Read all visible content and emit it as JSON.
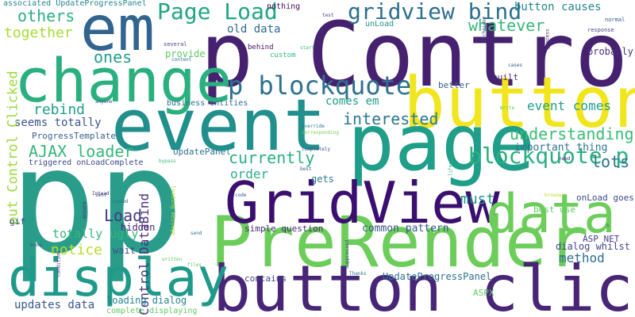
{
  "words": [
    {
      "text": "p",
      "color": "#2a9d8a"
    },
    {
      "text": "p",
      "color": "#2a9d8a"
    },
    {
      "text": "p Control",
      "color": "#46216f"
    },
    {
      "text": "button",
      "color": "#f1e51d"
    },
    {
      "text": "page",
      "color": "#1f9e89"
    },
    {
      "text": "event",
      "color": "#21908d"
    },
    {
      "text": "change",
      "color": "#2ab07f"
    },
    {
      "text": "em",
      "color": "#31648e"
    },
    {
      "text": "PreRender",
      "color": "#6ccd5a"
    },
    {
      "text": "button click",
      "color": "#482576"
    },
    {
      "text": "display",
      "color": "#1f9a8a"
    },
    {
      "text": "GridView",
      "color": "#3b0f70"
    },
    {
      "text": "data",
      "color": "#6ccd5a"
    },
    {
      "text": "p blockquote",
      "color": "#2c718e"
    },
    {
      "text": "Page Load",
      "color": "#21a685"
    },
    {
      "text": "gridview bind",
      "color": "#2d6f8e"
    },
    {
      "text": "blockquote p",
      "color": "#2ab07f"
    },
    {
      "text": "currently",
      "color": "#2ab07f"
    },
    {
      "text": "understanding",
      "color": "#3bbb75"
    },
    {
      "text": "AJAX loader",
      "color": "#35b779"
    },
    {
      "text": "others",
      "color": "#2ab07f"
    },
    {
      "text": "together",
      "color": "#a8db34"
    },
    {
      "text": "ones",
      "color": "#1f9e89"
    },
    {
      "text": "whatever",
      "color": "#35b779"
    },
    {
      "text": "button causes",
      "color": "#25848e"
    },
    {
      "text": "old data",
      "color": "#31688e"
    },
    {
      "text": "interested",
      "color": "#2a788e"
    },
    {
      "text": "rebind",
      "color": "#1f9e89"
    },
    {
      "text": "seems totally",
      "color": "#3b528b"
    },
    {
      "text": "event comes",
      "color": "#1f9e89"
    },
    {
      "text": "important thing",
      "color": "#2c728e"
    },
    {
      "text": "lots",
      "color": "#2c728e"
    },
    {
      "text": "order",
      "color": "#2ab07f"
    },
    {
      "text": "must",
      "color": "#21918c"
    },
    {
      "text": "Load",
      "color": "#443a83"
    },
    {
      "text": "Control DataBind",
      "color": "#46327e"
    },
    {
      "text": "put Control Clicked",
      "color": "#9bd93c"
    },
    {
      "text": "totally ugly",
      "color": "#35b779"
    },
    {
      "text": "notice",
      "color": "#b5de2b"
    },
    {
      "text": "method",
      "color": "#2d708e"
    },
    {
      "text": "common pattern",
      "color": "#39558c"
    },
    {
      "text": "updates data",
      "color": "#39568c"
    },
    {
      "text": "loading dialog",
      "color": "#26828e"
    },
    {
      "text": "UpdateProgressPanel",
      "color": "#2c728e"
    },
    {
      "text": "comes em",
      "color": "#1f9a8a"
    },
    {
      "text": "probably",
      "color": "#472f7d"
    },
    {
      "text": "provide",
      "color": "#5ec962"
    },
    {
      "text": "unLoad",
      "color": "#21918c"
    },
    {
      "text": "nothing",
      "color": "#46085c"
    },
    {
      "text": "gets",
      "color": "#29798e"
    },
    {
      "text": "wait",
      "color": "#3b528b"
    },
    {
      "text": "hidden",
      "color": "#482677"
    },
    {
      "text": "simple question",
      "color": "#472a7a"
    },
    {
      "text": "dialog whilst",
      "color": "#404588"
    },
    {
      "text": "ASP NET",
      "color": "#433e85"
    },
    {
      "text": "onLoad goes",
      "color": "#3e4989"
    },
    {
      "text": "best use",
      "color": "#5ec962"
    },
    {
      "text": "ProgressTemplate",
      "color": "#34608d"
    },
    {
      "text": "triggered onLoadComplete",
      "color": "#3e4989"
    },
    {
      "text": "UpdatePanel",
      "color": "#2c718e"
    },
    {
      "text": "business entities",
      "color": "#2e6e8e"
    },
    {
      "text": "better",
      "color": "#34608d"
    },
    {
      "text": "built",
      "color": "#482878"
    },
    {
      "text": "associated UpdateProgressPanel",
      "color": "#25848e"
    },
    {
      "text": "custom",
      "color": "#35b779"
    },
    {
      "text": "behind",
      "color": "#471063"
    },
    {
      "text": "contains",
      "color": "#404688"
    },
    {
      "text": "complete displaying",
      "color": "#5ec962"
    },
    {
      "text": "ASPX",
      "color": "#5ec962"
    },
    {
      "text": "gif",
      "color": "#3e4a89"
    },
    {
      "text": "test",
      "color": "#443983"
    },
    {
      "text": "several",
      "color": "#423f85"
    },
    {
      "text": "normal",
      "color": "#3b528b"
    },
    {
      "text": "response",
      "color": "#433e85"
    },
    {
      "text": "process",
      "color": "#482173"
    },
    {
      "text": "start",
      "color": "#3bbb75"
    },
    {
      "text": "technique",
      "color": "#3e4989"
    },
    {
      "text": "content",
      "color": "#2c728e"
    },
    {
      "text": "cases",
      "color": "#3b528b"
    },
    {
      "text": "Write",
      "color": "#5ec962"
    },
    {
      "text": "anyone",
      "color": "#3b528b"
    },
    {
      "text": "override",
      "color": "#2c728e"
    },
    {
      "text": "corresponding",
      "color": "#7ad151"
    },
    {
      "text": "completely",
      "color": "#3b528b"
    },
    {
      "text": "need",
      "color": "#482878"
    },
    {
      "text": "lifecycle",
      "color": "#2ab07f"
    },
    {
      "text": "best",
      "color": "#3b528b"
    },
    {
      "text": "bypass",
      "color": "#3bbb75"
    },
    {
      "text": "sent",
      "color": "#3b528b"
    },
    {
      "text": "Intead",
      "color": "#482878"
    },
    {
      "text": "loaded",
      "color": "#2c728e"
    },
    {
      "text": "loading message",
      "color": "#b5de2b"
    },
    {
      "text": "code",
      "color": "#3b528b"
    },
    {
      "text": "browser",
      "color": "#b5de2b"
    },
    {
      "text": "ensure",
      "color": "#482878"
    },
    {
      "text": "send",
      "color": "#2c728e"
    },
    {
      "text": "know",
      "color": "#3b528b"
    },
    {
      "text": "condition",
      "color": "#482878"
    },
    {
      "text": "written",
      "color": "#5ec962"
    },
    {
      "text": "files",
      "color": "#5ec962"
    },
    {
      "text": "suppressed",
      "color": "#3b528b"
    },
    {
      "text": "Thanks",
      "color": "#2c728e"
    },
    {
      "text": "s",
      "color": "#3b528b"
    }
  ]
}
